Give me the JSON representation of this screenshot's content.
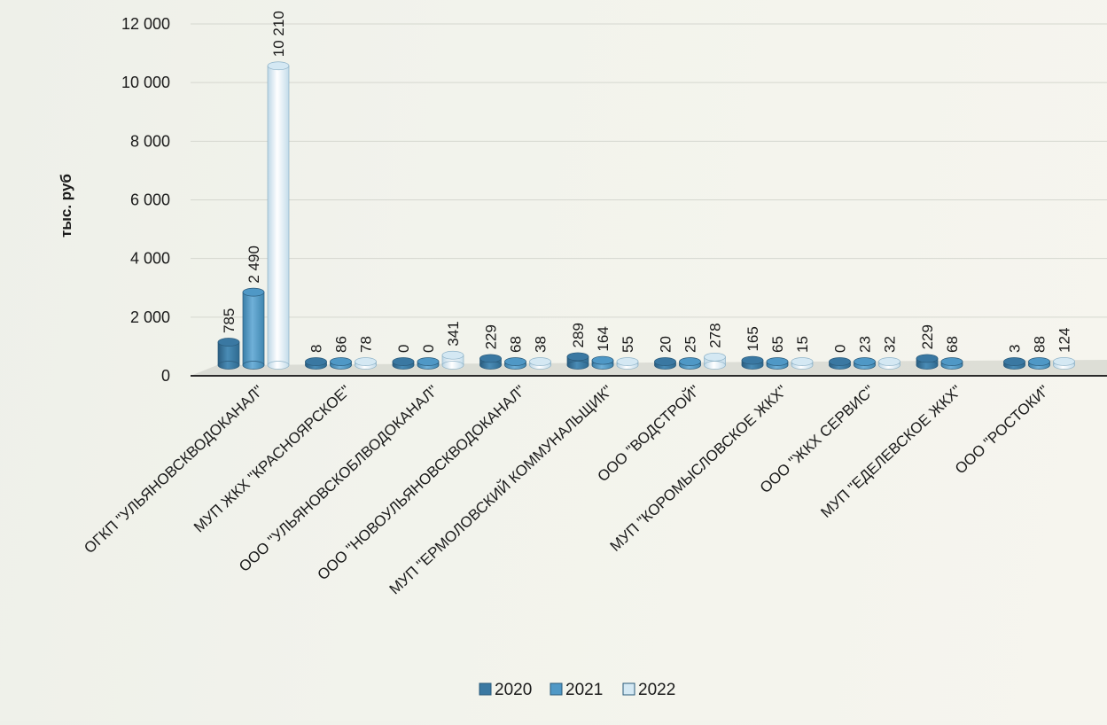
{
  "chart_data": {
    "type": "bar",
    "ylabel": "тыс. руб",
    "ylim": [
      0,
      12000
    ],
    "yticks": [
      0,
      2000,
      4000,
      6000,
      8000,
      10000,
      12000
    ],
    "ytick_labels": [
      "0",
      "2 000",
      "4 000",
      "6 000",
      "8 000",
      "10 000",
      "12 000"
    ],
    "grid": true,
    "legend_position": "bottom",
    "categories": [
      "ОГКП \"УЛЬЯНОВСКВОДОКАНАЛ\"",
      "МУП ЖКХ \"КРАСНОЯРСКОЕ\"",
      "ООО \"УЛЬЯНОВСКОБЛВОДОКАНАЛ\"",
      "ООО \"НОВОУЛЬЯНОВСКВОДОКАНАЛ\"",
      "МУП \"ЕРМОЛОВСКИЙ КОММУНАЛЬЩИК\"",
      "ООО \"ВОДСТРОЙ\"",
      "МУП \"КОРОМЫСЛОВСКОЕ ЖКХ\"",
      "ООО \"ЖКХ СЕРВИС\"",
      "МУП \"ЕДЕЛЕВСКОЕ ЖКХ\"",
      "ООО \"РОСТОКИ\""
    ],
    "series": [
      {
        "name": "2020",
        "color": "#3a78a2",
        "values": [
          785,
          8,
          0,
          229,
          289,
          20,
          165,
          0,
          229,
          3
        ],
        "labels": [
          "785",
          "8",
          "0",
          "229",
          "289",
          "20",
          "165",
          "0",
          "229",
          "3"
        ]
      },
      {
        "name": "2021",
        "color": "#4f98c6",
        "values": [
          2490,
          86,
          0,
          68,
          164,
          25,
          65,
          23,
          68,
          88
        ],
        "labels": [
          "2 490",
          "86",
          "0",
          "68",
          "164",
          "25",
          "65",
          "23",
          "68",
          "88"
        ]
      },
      {
        "name": "2022",
        "color": "#d4e8f3",
        "values": [
          10210,
          78,
          341,
          38,
          55,
          278,
          15,
          32,
          null,
          124
        ],
        "labels": [
          "10 210",
          "78",
          "341",
          "38",
          "55",
          "278",
          "15",
          "32",
          "",
          "124"
        ]
      }
    ]
  }
}
